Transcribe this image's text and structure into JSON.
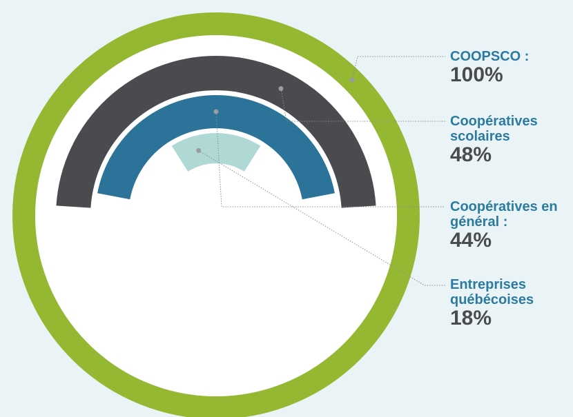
{
  "chart_data": {
    "type": "radial-bar",
    "max": 100,
    "series": [
      {
        "name": "COOPSCO :",
        "value": 100,
        "value_label": "100%",
        "color": "#95b833"
      },
      {
        "name": "Coopératives scolaires",
        "value": 48,
        "value_label": "48%",
        "color": "#4a4b4f"
      },
      {
        "name": "Coopératives en général :",
        "value": 44,
        "value_label": "44%",
        "color": "#2b7398"
      },
      {
        "name": "Entreprises québécoises",
        "value": 18,
        "value_label": "18%",
        "color": "#b0d9d6"
      }
    ],
    "legend": "right",
    "grid": false
  },
  "colors": {
    "background": "#eaf4f7",
    "label_name": "#2b7ba0",
    "label_value": "#4a4b4f",
    "leader_line": "#8a8c8f"
  }
}
